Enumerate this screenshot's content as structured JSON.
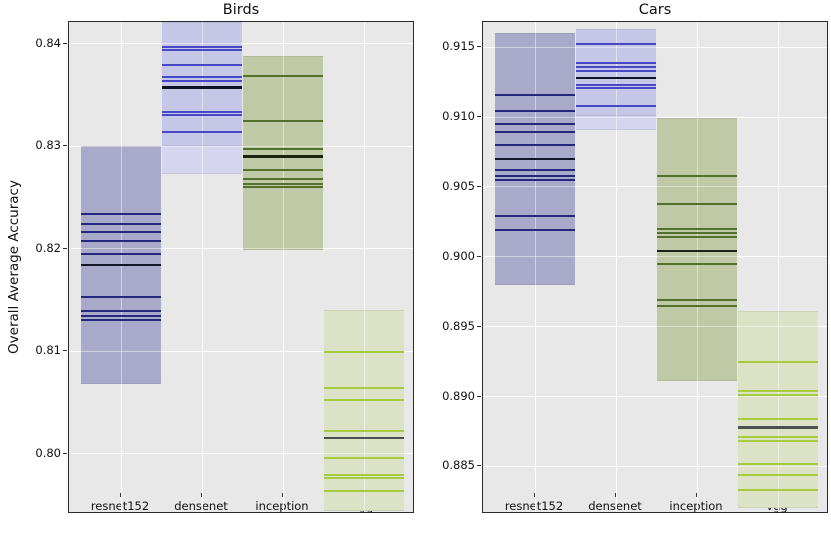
{
  "figure": {
    "ylabel": "Overall Average Accuracy",
    "background": "#ffffff",
    "plot_background": "#e8e8e8",
    "grid_color": "#ffffff",
    "frame_color": "#2a2a2a",
    "text_color": "#111111"
  },
  "model_styles": {
    "resnet152": {
      "band": "#a9aac9",
      "line": "#26267e",
      "black": "#15152e"
    },
    "densenet": {
      "band": "#c6c6e7",
      "band_light": "#d5d5ef",
      "line": "#4747c8",
      "black": "#111128"
    },
    "inception": {
      "band": "#c0c9a6",
      "line": "#55702c",
      "black": "#1d2410"
    },
    "vgg": {
      "band": "#dce2c5",
      "line": "#a7ca40",
      "black": "#4f4f4f"
    }
  },
  "chart_data": [
    {
      "type": "band-strip",
      "title": "Birds",
      "categories": [
        "resnet152",
        "densenet",
        "inception",
        "vgg"
      ],
      "ylim": [
        0.7941,
        0.8421
      ],
      "yticks": [
        0.84,
        0.83,
        0.82,
        0.81,
        0.8
      ],
      "ytick_labels": [
        "0.84",
        "0.83",
        "0.82",
        "0.81",
        "0.80"
      ],
      "grid": true,
      "groups": [
        {
          "model": "resnet152",
          "band": [
            0.8068,
            0.83
          ],
          "lines": [
            0.8234,
            0.8224,
            0.8216,
            0.8207,
            0.8195,
            0.8153,
            0.8139,
            0.8134,
            0.813
          ],
          "black_line": 0.8184
        },
        {
          "model": "densenet",
          "band": [
            0.8273,
            0.8421
          ],
          "dark_band": [
            0.83,
            0.8421
          ],
          "lines": [
            0.8397,
            0.8394,
            0.8379,
            0.8367,
            0.8363,
            0.8333,
            0.833,
            0.8314
          ],
          "black_line": 0.8357
        },
        {
          "model": "inception",
          "band": [
            0.8199,
            0.8388
          ],
          "lines": [
            0.8368,
            0.8324,
            0.8297,
            0.8277,
            0.8268,
            0.8263,
            0.826
          ],
          "black_line": 0.829
        },
        {
          "model": "vgg",
          "band": [
            0.7944,
            0.814
          ],
          "lines": [
            0.8099,
            0.8064,
            0.8052,
            0.8022,
            0.7996,
            0.7979,
            0.7976,
            0.7963
          ],
          "black_line": 0.8015
        }
      ]
    },
    {
      "type": "band-strip",
      "title": "Cars",
      "categories": [
        "resnet152",
        "densenet",
        "inception",
        "vgg"
      ],
      "ylim": [
        0.8816,
        0.9168
      ],
      "yticks": [
        0.915,
        0.91,
        0.905,
        0.9,
        0.895,
        0.89,
        0.885
      ],
      "ytick_labels": [
        "0.915",
        "0.910",
        "0.905",
        "0.900",
        "0.895",
        "0.890",
        "0.885"
      ],
      "grid": true,
      "groups": [
        {
          "model": "resnet152",
          "band": [
            0.898,
            0.916
          ],
          "lines": [
            0.9116,
            0.9104,
            0.9095,
            0.9089,
            0.908,
            0.9062,
            0.9058,
            0.9055,
            0.9029,
            0.9019
          ],
          "black_line": 0.907
        },
        {
          "model": "densenet",
          "band": [
            0.9091,
            0.9163
          ],
          "dark_band": [
            0.9101,
            0.9163
          ],
          "lines": [
            0.9152,
            0.9139,
            0.9136,
            0.9133,
            0.9123,
            0.9121,
            0.9108
          ],
          "black_line": 0.9128
        },
        {
          "model": "inception",
          "band": [
            0.8911,
            0.9099
          ],
          "lines": [
            0.9058,
            0.9038,
            0.902,
            0.9017,
            0.9014,
            0.8995,
            0.8969,
            0.8965
          ],
          "black_line": 0.9004
        },
        {
          "model": "vgg",
          "band": [
            0.882,
            0.8961
          ],
          "lines": [
            0.8925,
            0.8904,
            0.8901,
            0.8884,
            0.8871,
            0.8868,
            0.8852,
            0.8844,
            0.8833
          ],
          "black_line": 0.8878
        }
      ]
    }
  ]
}
